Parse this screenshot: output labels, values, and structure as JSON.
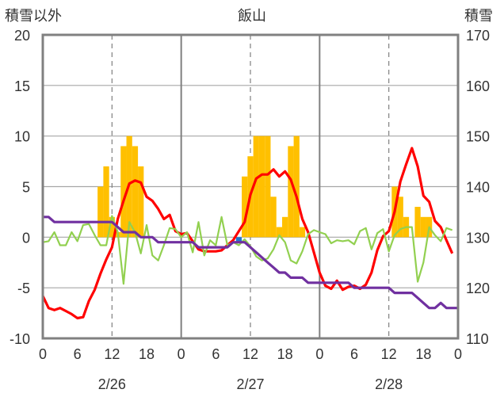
{
  "chart_data": {
    "type": "bar",
    "title": "飯山",
    "left_axis_label": "積雪以外",
    "right_axis_label": "積雪",
    "y_left": {
      "min": -10,
      "max": 20,
      "ticks": [
        20,
        15,
        10,
        5,
        0,
        -5,
        -10
      ]
    },
    "y_right": {
      "min": 110,
      "max": 170,
      "ticks": [
        170,
        160,
        150,
        140,
        130,
        120,
        110
      ]
    },
    "x": {
      "min": 0,
      "max": 72,
      "unit": "hour",
      "tick_hours": [
        0,
        6,
        12,
        18,
        24,
        30,
        36,
        42,
        48,
        54,
        60,
        66,
        72
      ],
      "tick_labels": [
        "0",
        "6",
        "12",
        "18",
        "0",
        "6",
        "12",
        "18",
        "0",
        "6",
        "12",
        "18",
        "0"
      ]
    },
    "day_labels": [
      "2/26",
      "2/27",
      "2/28"
    ],
    "day_label_hours": [
      12,
      36,
      60
    ],
    "day_boundary_hours": [
      24,
      48
    ],
    "dashed_hours": [
      12,
      36,
      60
    ],
    "bar_colors": {
      "precip": "#FFC000",
      "marker": "#1F77D0"
    },
    "line_colors": {
      "temperature": "#FF0000",
      "wind": "#92D050",
      "snow_depth": "#7030A0"
    },
    "series": [
      {
        "key": "precip",
        "axis": "left",
        "kind": "bar",
        "values": [
          [
            10,
            5
          ],
          [
            11,
            7
          ],
          [
            12,
            2
          ],
          [
            13,
            0.5
          ],
          [
            14,
            9
          ],
          [
            15,
            10
          ],
          [
            16,
            9
          ],
          [
            17,
            7
          ],
          [
            35,
            6
          ],
          [
            36,
            8
          ],
          [
            37,
            10
          ],
          [
            38,
            10
          ],
          [
            39,
            10
          ],
          [
            40,
            4
          ],
          [
            41,
            1
          ],
          [
            42,
            2
          ],
          [
            43,
            9
          ],
          [
            44,
            10
          ],
          [
            45,
            1
          ],
          [
            61,
            5
          ],
          [
            62,
            4
          ],
          [
            63,
            2
          ],
          [
            65,
            3
          ],
          [
            66,
            2
          ],
          [
            67,
            2
          ]
        ]
      },
      {
        "key": "marker",
        "axis": "left",
        "kind": "bar",
        "values": [
          [
            34,
            -0.5
          ]
        ]
      },
      {
        "key": "temperature",
        "axis": "left",
        "kind": "line",
        "values": [
          [
            0,
            -5.8
          ],
          [
            1,
            -7
          ],
          [
            2,
            -7.2
          ],
          [
            3,
            -7
          ],
          [
            4,
            -7.3
          ],
          [
            5,
            -7.6
          ],
          [
            6,
            -8
          ],
          [
            7,
            -7.9
          ],
          [
            8,
            -6.3
          ],
          [
            9,
            -5.2
          ],
          [
            10,
            -3.6
          ],
          [
            11,
            -2.2
          ],
          [
            12,
            -1
          ],
          [
            13,
            1.8
          ],
          [
            14,
            3.6
          ],
          [
            15,
            5.3
          ],
          [
            16,
            5.6
          ],
          [
            17,
            5.4
          ],
          [
            18,
            4
          ],
          [
            19,
            3.6
          ],
          [
            20,
            2.8
          ],
          [
            21,
            1.8
          ],
          [
            22,
            2.2
          ],
          [
            23,
            0.6
          ],
          [
            24,
            0.3
          ],
          [
            25,
            0.4
          ],
          [
            26,
            -0.4
          ],
          [
            27,
            -1.2
          ],
          [
            28,
            -1.4
          ],
          [
            29,
            -1.4
          ],
          [
            30,
            -1.4
          ],
          [
            31,
            -1.3
          ],
          [
            32,
            -0.8
          ],
          [
            33,
            -0.3
          ],
          [
            34,
            0.6
          ],
          [
            35,
            1.5
          ],
          [
            36,
            4.2
          ],
          [
            37,
            5.8
          ],
          [
            38,
            6.2
          ],
          [
            39,
            6.2
          ],
          [
            40,
            6.7
          ],
          [
            41,
            6
          ],
          [
            42,
            6.5
          ],
          [
            43,
            5.7
          ],
          [
            44,
            4
          ],
          [
            45,
            1.8
          ],
          [
            46,
            0.5
          ],
          [
            47,
            -1.5
          ],
          [
            48,
            -3.5
          ],
          [
            49,
            -4.8
          ],
          [
            50,
            -5.1
          ],
          [
            51,
            -4.3
          ],
          [
            52,
            -5.2
          ],
          [
            53,
            -4.9
          ],
          [
            54,
            -4.8
          ],
          [
            55,
            -5.1
          ],
          [
            56,
            -4.7
          ],
          [
            57,
            -3.5
          ],
          [
            58,
            -1.3
          ],
          [
            59,
            0.1
          ],
          [
            60,
            0.6
          ],
          [
            61,
            2.5
          ],
          [
            62,
            5.5
          ],
          [
            63,
            7.2
          ],
          [
            64,
            8.8
          ],
          [
            65,
            7
          ],
          [
            66,
            4.1
          ],
          [
            67,
            3.5
          ],
          [
            68,
            1.6
          ],
          [
            69,
            1
          ],
          [
            70,
            -0.3
          ],
          [
            71,
            -1.6
          ]
        ]
      },
      {
        "key": "wind",
        "axis": "left",
        "kind": "line",
        "values": [
          [
            0,
            -0.5
          ],
          [
            1,
            -0.4
          ],
          [
            2,
            0.5
          ],
          [
            3,
            -0.8
          ],
          [
            4,
            -0.8
          ],
          [
            5,
            0.5
          ],
          [
            6,
            -0.4
          ],
          [
            7,
            1.2
          ],
          [
            8,
            1.3
          ],
          [
            9,
            0.2
          ],
          [
            10,
            -0.8
          ],
          [
            11,
            -0.8
          ],
          [
            12,
            2.1
          ],
          [
            13,
            0.5
          ],
          [
            14,
            -4.6
          ],
          [
            15,
            1.5
          ],
          [
            16,
            0.5
          ],
          [
            17,
            -1.6
          ],
          [
            18,
            1.2
          ],
          [
            19,
            -1.8
          ],
          [
            20,
            -2.3
          ],
          [
            21,
            -0.8
          ],
          [
            22,
            0.9
          ],
          [
            23,
            0.8
          ],
          [
            24,
            0
          ],
          [
            25,
            0.5
          ],
          [
            26,
            -1.5
          ],
          [
            27,
            1.5
          ],
          [
            28,
            -1.8
          ],
          [
            29,
            -0.3
          ],
          [
            30,
            -0.8
          ],
          [
            31,
            2
          ],
          [
            32,
            -0.8
          ],
          [
            33,
            -0.5
          ],
          [
            34,
            -0.8
          ],
          [
            35,
            -0.2
          ],
          [
            36,
            -0.9
          ],
          [
            37,
            -1.9
          ],
          [
            38,
            -2.3
          ],
          [
            39,
            -2.1
          ],
          [
            40,
            -1.2
          ],
          [
            41,
            0.2
          ],
          [
            42,
            -0.5
          ],
          [
            43,
            -2.3
          ],
          [
            44,
            -2.6
          ],
          [
            45,
            -1.4
          ],
          [
            46,
            0.3
          ],
          [
            47,
            0.7
          ],
          [
            48,
            0.5
          ],
          [
            49,
            0.3
          ],
          [
            50,
            -0.6
          ],
          [
            51,
            -0.3
          ],
          [
            52,
            -0.4
          ],
          [
            53,
            -0.3
          ],
          [
            54,
            -0.7
          ],
          [
            55,
            0.6
          ],
          [
            56,
            0.9
          ],
          [
            57,
            -1.2
          ],
          [
            58,
            0.4
          ],
          [
            59,
            0.8
          ],
          [
            60,
            -1.4
          ],
          [
            61,
            0.2
          ],
          [
            62,
            0.8
          ],
          [
            63,
            1
          ],
          [
            64,
            1
          ],
          [
            65,
            -4.4
          ],
          [
            66,
            -2.5
          ],
          [
            67,
            1
          ],
          [
            68,
            0.2
          ],
          [
            69,
            -0.4
          ],
          [
            70,
            0.9
          ],
          [
            71,
            0.7
          ]
        ]
      },
      {
        "key": "snow_depth",
        "axis": "right",
        "kind": "line",
        "values": [
          [
            0,
            134
          ],
          [
            1,
            134
          ],
          [
            2,
            133
          ],
          [
            12,
            133
          ],
          [
            13,
            132
          ],
          [
            14,
            131
          ],
          [
            16,
            131
          ],
          [
            17,
            130
          ],
          [
            19,
            130
          ],
          [
            20,
            129
          ],
          [
            26,
            129
          ],
          [
            27,
            128
          ],
          [
            32,
            128
          ],
          [
            33,
            129
          ],
          [
            35,
            129
          ],
          [
            36,
            128
          ],
          [
            37,
            127
          ],
          [
            38,
            126
          ],
          [
            39,
            125
          ],
          [
            40,
            124
          ],
          [
            41,
            123
          ],
          [
            42,
            123
          ],
          [
            43,
            122
          ],
          [
            45,
            122
          ],
          [
            46,
            121
          ],
          [
            53,
            121
          ],
          [
            54,
            120
          ],
          [
            60,
            120
          ],
          [
            61,
            119
          ],
          [
            64,
            119
          ],
          [
            65,
            118
          ],
          [
            66,
            117
          ],
          [
            67,
            116
          ],
          [
            68,
            116
          ],
          [
            69,
            117
          ],
          [
            70,
            116
          ],
          [
            72,
            116
          ]
        ]
      }
    ]
  }
}
